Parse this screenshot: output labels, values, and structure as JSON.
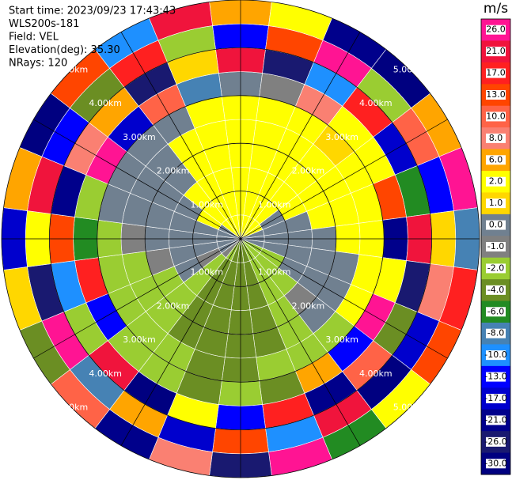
{
  "header": {
    "lines": [
      "Start time: 2023/09/23 17:43:43",
      "WLS200s-181",
      "Field: VEL",
      "Elevation(deg): 35.30",
      "NRays: 120"
    ]
  },
  "chart_data": {
    "type": "ppi",
    "azimuth": [
      0,
      15,
      30,
      45,
      60,
      75,
      90,
      105,
      120,
      135,
      150,
      165,
      180,
      195,
      210,
      225,
      240,
      255,
      270,
      285,
      300,
      315,
      330,
      345
    ],
    "range_edges": [
      0,
      0.5,
      1,
      1.5,
      2,
      2.5,
      3,
      3.5,
      4,
      4.5,
      5
    ],
    "rlim": [
      0,
      5
    ],
    "values": [
      [
        2,
        2,
        2,
        2,
        2,
        2,
        0,
        21,
        -13,
        6
      ],
      [
        2,
        2,
        2,
        2,
        2,
        2,
        -1,
        -26,
        13,
        2
      ],
      [
        2,
        2,
        2,
        2,
        2,
        2,
        8,
        -10,
        26,
        -21
      ],
      [
        2,
        2,
        2,
        2,
        2,
        1,
        2,
        17,
        -2,
        -30
      ],
      [
        2,
        0,
        2,
        2,
        2,
        2,
        2,
        -17,
        10,
        6
      ],
      [
        0,
        0,
        0,
        2,
        2,
        2,
        13,
        -6,
        -13,
        26
      ],
      [
        0,
        0,
        0,
        0,
        2,
        2,
        -21,
        21,
        1,
        -8
      ],
      [
        0,
        0,
        0,
        0,
        0,
        2,
        2,
        -26,
        8,
        17
      ],
      [
        -2,
        -2,
        0,
        0,
        0,
        2,
        26,
        -4,
        -17,
        13
      ],
      [
        -2,
        -2,
        -2,
        -1,
        0,
        -2,
        -13,
        10,
        -30,
        2
      ],
      [
        -2,
        -2,
        -2,
        -2,
        -2,
        -2,
        6,
        -21,
        21,
        -6
      ],
      [
        -4,
        -4,
        -4,
        -4,
        -4,
        -2,
        -4,
        17,
        -10,
        26
      ],
      [
        -4,
        -4,
        -4,
        -4,
        -4,
        -4,
        -2,
        -13,
        13,
        -26
      ],
      [
        -4,
        -4,
        -4,
        -4,
        -4,
        -4,
        -4,
        2,
        -17,
        8
      ],
      [
        -2,
        -4,
        -4,
        -4,
        -4,
        -2,
        -2,
        -30,
        6,
        -21
      ],
      [
        -1,
        -2,
        -2,
        -2,
        -2,
        -2,
        -2,
        21,
        -8,
        10
      ],
      [
        0,
        -1,
        0,
        -2,
        -2,
        -2,
        -13,
        -2,
        26,
        -4
      ],
      [
        0,
        0,
        0,
        -1,
        -2,
        -2,
        17,
        -10,
        -26,
        1
      ],
      [
        0,
        0,
        0,
        0,
        -1,
        -2,
        -6,
        13,
        2,
        -17
      ],
      [
        0,
        0,
        0,
        0,
        0,
        0,
        -2,
        -21,
        21,
        6
      ],
      [
        0,
        2,
        0,
        0,
        0,
        0,
        26,
        8,
        -13,
        -30
      ],
      [
        2,
        2,
        2,
        0,
        0,
        0,
        -17,
        6,
        -4,
        13
      ],
      [
        2,
        2,
        2,
        2,
        2,
        0,
        10,
        -26,
        17,
        -10
      ],
      [
        2,
        2,
        2,
        2,
        2,
        2,
        -8,
        1,
        -2,
        21
      ]
    ],
    "ring_labels": [
      {
        "value": 1,
        "label": "1.00km"
      },
      {
        "value": 2,
        "label": "2.00km"
      },
      {
        "value": 3,
        "label": "3.00km"
      },
      {
        "value": 4,
        "label": "4.00km"
      },
      {
        "value": 5,
        "label": "5.00km"
      }
    ],
    "colorbar": {
      "unit": "m/s",
      "ticks": [
        {
          "value": 26,
          "label": "26.0"
        },
        {
          "value": 21,
          "label": "21.0"
        },
        {
          "value": 17,
          "label": "17.0"
        },
        {
          "value": 13,
          "label": "13.0"
        },
        {
          "value": 10,
          "label": "10.0"
        },
        {
          "value": 8,
          "label": "8.0"
        },
        {
          "value": 6,
          "label": "6.0"
        },
        {
          "value": 2,
          "label": "2.0"
        },
        {
          "value": 1,
          "label": "1.0"
        },
        {
          "value": 0,
          "label": "0.0"
        },
        {
          "value": -1,
          "label": "-1.0"
        },
        {
          "value": -2,
          "label": "-2.0"
        },
        {
          "value": -4,
          "label": "-4.0"
        },
        {
          "value": -6,
          "label": "-6.0"
        },
        {
          "value": -8,
          "label": "-8.0"
        },
        {
          "value": -10,
          "label": "-10.0"
        },
        {
          "value": -13,
          "label": "-13.0"
        },
        {
          "value": -17,
          "label": "-17.0"
        },
        {
          "value": -21,
          "label": "-21.0"
        },
        {
          "value": -26,
          "label": "-26.0"
        },
        {
          "value": -30,
          "label": "-30.0"
        }
      ],
      "colors": [
        "#ff1493",
        "#f0143c",
        "#ff2020",
        "#ff4500",
        "#ff6347",
        "#fa8072",
        "#ffa500",
        "#ffff00",
        "#ffd700",
        "#708090",
        "#808080",
        "#9acd32",
        "#6b8e23",
        "#228b22",
        "#4682b4",
        "#1e90ff",
        "#0000ff",
        "#0000cd",
        "#00008b",
        "#191970",
        "#000080"
      ]
    }
  }
}
